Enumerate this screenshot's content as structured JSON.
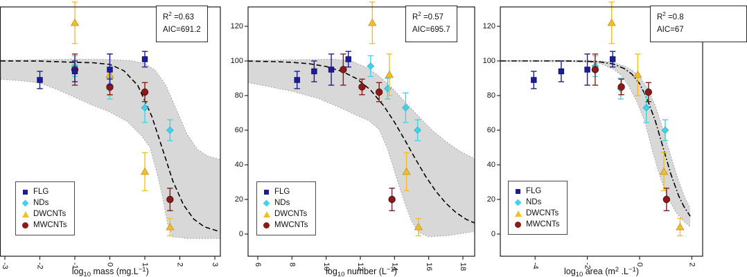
{
  "figure": {
    "background": "#ffffff",
    "colors": {
      "band_fill": "#d8d8d8",
      "band_edge": "#9e9e9e",
      "curve": "#000000",
      "axis": "#1a1a1a"
    },
    "legend": {
      "items": [
        {
          "label": "FLG",
          "marker": "square",
          "color": "#1c1c96",
          "edge": "#0d0d6b"
        },
        {
          "label": "NDs",
          "marker": "diamond",
          "color": "#41d3e8",
          "edge": "#17b0cc"
        },
        {
          "label": "DWCNTs",
          "marker": "triangle",
          "color": "#f2bf27",
          "edge": "#c2911a"
        },
        {
          "label": "MWCNTs",
          "marker": "circle",
          "color": "#8b1a1a",
          "edge": "#5c0e0e"
        }
      ]
    },
    "y_axis": {
      "ticks": [
        0,
        20,
        40,
        60,
        80,
        100,
        120
      ]
    }
  },
  "chart_data": [
    {
      "type": "scatter",
      "id": "mass",
      "stats": {
        "lines": [
          [
            {
              "t": "t",
              "v": "R"
            },
            {
              "t": "sup",
              "v": "2"
            },
            {
              "t": "t",
              "v": " =0.63"
            }
          ],
          [
            {
              "t": "t",
              "v": "AIC=691.2"
            }
          ]
        ]
      },
      "xlabel_parts": [
        {
          "t": "t",
          "v": "log"
        },
        {
          "t": "sub",
          "v": "10"
        },
        {
          "t": "t",
          "v": " mass (mg.L"
        },
        {
          "t": "sup",
          "v": "−1"
        },
        {
          "t": "t",
          "v": ")"
        }
      ],
      "x_ticks": [
        -3,
        -2,
        -1,
        0,
        1,
        2,
        3
      ],
      "xlim": [
        -3.12,
        3.16
      ],
      "ylim": [
        -12.8,
        131.2
      ],
      "series": [
        {
          "name": "FLG",
          "x": [
            -2,
            -1,
            0,
            1
          ],
          "y": [
            89,
            94,
            95,
            101
          ],
          "err": [
            5,
            6,
            9,
            4.5
          ]
        },
        {
          "name": "NDs",
          "x": [
            -1,
            0,
            1,
            1.72
          ],
          "y": [
            97,
            84,
            73,
            60
          ],
          "err": [
            6,
            6,
            8.5,
            6
          ]
        },
        {
          "name": "DWCNTs",
          "x": [
            -1,
            0,
            1,
            1.72
          ],
          "y": [
            122,
            92,
            36,
            4
          ],
          "err": [
            12,
            12,
            11,
            5
          ]
        },
        {
          "name": "MWCNTs",
          "x": [
            -1,
            0,
            1,
            1.72
          ],
          "y": [
            95,
            85,
            82,
            20
          ],
          "err": [
            9,
            4.5,
            5.5,
            6.5
          ]
        }
      ],
      "fit_curve": [
        [
          -3.12,
          100
        ],
        [
          -2,
          99.9
        ],
        [
          -1,
          99.2
        ],
        [
          -0.5,
          99
        ],
        [
          0,
          98
        ],
        [
          0.4,
          94.4
        ],
        [
          0.8,
          85.8
        ],
        [
          1.2,
          68
        ],
        [
          1.5,
          49.4
        ],
        [
          1.8,
          30.7
        ],
        [
          2.1,
          17
        ],
        [
          2.4,
          8.6
        ],
        [
          2.7,
          4.2
        ],
        [
          3.16,
          1.3
        ]
      ],
      "band_upper": [
        [
          -3.12,
          100.4
        ],
        [
          -2,
          100.7
        ],
        [
          -1,
          101
        ],
        [
          0,
          100.8
        ],
        [
          0.6,
          100.2
        ],
        [
          1.0,
          98.5
        ],
        [
          1.3,
          94.5
        ],
        [
          1.6,
          86
        ],
        [
          1.9,
          72
        ],
        [
          2.2,
          58
        ],
        [
          2.5,
          49
        ],
        [
          2.8,
          45
        ],
        [
          3.16,
          43
        ]
      ],
      "band_lower": [
        [
          -3.12,
          89.5
        ],
        [
          -2.5,
          88.5
        ],
        [
          -2,
          87.3
        ],
        [
          -1.5,
          83.5
        ],
        [
          -1,
          79
        ],
        [
          -0.5,
          74.5
        ],
        [
          0,
          70.5
        ],
        [
          0.5,
          65
        ],
        [
          0.9,
          57
        ],
        [
          1.15,
          50
        ],
        [
          1.35,
          35
        ],
        [
          1.5,
          22
        ],
        [
          1.65,
          6
        ],
        [
          1.8,
          -1.5
        ],
        [
          2.2,
          -2.5
        ],
        [
          3.16,
          -2.5
        ]
      ]
    },
    {
      "type": "scatter",
      "id": "number",
      "stats": {
        "lines": [
          [
            {
              "t": "t",
              "v": "R"
            },
            {
              "t": "sup",
              "v": "2"
            },
            {
              "t": "t",
              "v": " =0.57"
            }
          ],
          [
            {
              "t": "t",
              "v": "AIC=695.7"
            }
          ]
        ]
      },
      "xlabel_parts": [
        {
          "t": "t",
          "v": "log"
        },
        {
          "t": "sub",
          "v": "10"
        },
        {
          "t": "t",
          "v": " number (L"
        },
        {
          "t": "sup",
          "v": "−1"
        },
        {
          "t": "t",
          "v": ")"
        }
      ],
      "x_ticks": [
        6,
        8,
        10,
        12,
        14,
        16,
        18
      ],
      "xlim": [
        5.43,
        18.69
      ],
      "ylim": [
        -12.8,
        131.2
      ],
      "series": [
        {
          "name": "FLG",
          "x": [
            8.3,
            9.3,
            10.3,
            11.3
          ],
          "y": [
            89,
            94,
            95,
            101
          ],
          "err": [
            5,
            6,
            9,
            4.5
          ]
        },
        {
          "name": "NDs",
          "x": [
            12.6,
            13.6,
            14.65,
            15.35
          ],
          "y": [
            97,
            84,
            73,
            60
          ],
          "err": [
            6,
            6,
            8.5,
            6
          ]
        },
        {
          "name": "DWCNTs",
          "x": [
            12.7,
            13.7,
            14.7,
            15.4
          ],
          "y": [
            122,
            92,
            36,
            4
          ],
          "err": [
            12,
            12,
            11,
            5
          ]
        },
        {
          "name": "MWCNTs",
          "x": [
            11.0,
            12.1,
            13.1,
            13.85
          ],
          "y": [
            95,
            85,
            82,
            20
          ],
          "err": [
            9,
            4.5,
            5.5,
            6.5
          ]
        }
      ],
      "fit_curve": [
        [
          5.43,
          99.9
        ],
        [
          7,
          99.6
        ],
        [
          8,
          99.2
        ],
        [
          9,
          98.4
        ],
        [
          10,
          96.8
        ],
        [
          11,
          93.7
        ],
        [
          11.8,
          89.7
        ],
        [
          12.6,
          83.2
        ],
        [
          13.4,
          73.7
        ],
        [
          14,
          64.6
        ],
        [
          14.6,
          54.4
        ],
        [
          15.2,
          43.8
        ],
        [
          15.8,
          33.7
        ],
        [
          16.4,
          25
        ],
        [
          17,
          17.9
        ],
        [
          17.6,
          12.4
        ],
        [
          18.2,
          8.5
        ],
        [
          18.69,
          6.4
        ]
      ],
      "band_upper": [
        [
          5.43,
          100.3
        ],
        [
          7,
          100.5
        ],
        [
          9,
          100.8
        ],
        [
          10.5,
          101
        ],
        [
          11.5,
          99.8
        ],
        [
          12.3,
          96.5
        ],
        [
          13,
          92
        ],
        [
          13.8,
          85
        ],
        [
          14.6,
          76.5
        ],
        [
          15.4,
          68
        ],
        [
          16.2,
          60
        ],
        [
          17,
          53.5
        ],
        [
          17.8,
          48
        ],
        [
          18.69,
          43.5
        ]
      ],
      "band_lower": [
        [
          5.43,
          87.5
        ],
        [
          6.5,
          85.5
        ],
        [
          8,
          82.5
        ],
        [
          9.5,
          78.5
        ],
        [
          10.7,
          73.5
        ],
        [
          11.7,
          69
        ],
        [
          12.5,
          65.5
        ],
        [
          13.1,
          60.5
        ],
        [
          13.6,
          49
        ],
        [
          14.1,
          33
        ],
        [
          14.6,
          18
        ],
        [
          15,
          7.5
        ],
        [
          15.4,
          1
        ],
        [
          16,
          -1.5
        ],
        [
          17,
          -1
        ],
        [
          18,
          0.5
        ],
        [
          18.69,
          1.5
        ]
      ]
    },
    {
      "type": "scatter",
      "id": "area",
      "stats": {
        "lines": [
          [
            {
              "t": "t",
              "v": "R"
            },
            {
              "t": "sup",
              "v": "2"
            },
            {
              "t": "t",
              "v": " =0.8"
            }
          ],
          [
            {
              "t": "t",
              "v": "AIC=67"
            }
          ]
        ]
      },
      "xlabel_parts": [
        {
          "t": "t",
          "v": "log"
        },
        {
          "t": "sub",
          "v": "10"
        },
        {
          "t": "t",
          "v": " area (m"
        },
        {
          "t": "sup",
          "v": "2"
        },
        {
          "t": "t",
          "v": " .L"
        },
        {
          "t": "sup",
          "v": "−1"
        },
        {
          "t": "t",
          "v": ")"
        }
      ],
      "x_ticks": [
        -4,
        -2,
        0,
        2
      ],
      "xlim": [
        -5.33,
        1.94
      ],
      "ylim": [
        -12.8,
        131.2
      ],
      "series": [
        {
          "name": "FLG",
          "x": [
            -4.05,
            -3.0,
            -2.0,
            -1.03
          ],
          "y": [
            89,
            94,
            95,
            101
          ],
          "err": [
            5,
            6,
            9,
            4.5
          ]
        },
        {
          "name": "NDs",
          "x": [
            -1.7,
            -0.72,
            0.26,
            0.98
          ],
          "y": [
            97,
            84,
            73,
            60
          ],
          "err": [
            6,
            6,
            8.5,
            6
          ]
        },
        {
          "name": "DWCNTs",
          "x": [
            -1.07,
            -0.07,
            0.93,
            1.55
          ],
          "y": [
            122,
            92,
            36,
            4
          ],
          "err": [
            12,
            12,
            11,
            5
          ]
        },
        {
          "name": "MWCNTs",
          "x": [
            -1.7,
            -0.7,
            0.34,
            1.03
          ],
          "y": [
            95,
            85,
            82,
            20
          ],
          "err": [
            9,
            4.5,
            5.5,
            6.5
          ]
        }
      ],
      "fit_curve": [
        [
          -5.33,
          100
        ],
        [
          -3,
          100
        ],
        [
          -2,
          99.8
        ],
        [
          -1.5,
          99.4
        ],
        [
          -1,
          98.2
        ],
        [
          -0.6,
          95.7
        ],
        [
          -0.3,
          92.5
        ],
        [
          0,
          86.9
        ],
        [
          0.3,
          77.7
        ],
        [
          0.6,
          65.5
        ],
        [
          0.9,
          50
        ],
        [
          1.2,
          34.5
        ],
        [
          1.5,
          22
        ],
        [
          1.7,
          15.8
        ],
        [
          1.94,
          10.3
        ]
      ],
      "band_upper": [
        [
          -5.33,
          100.2
        ],
        [
          -3,
          100.3
        ],
        [
          -2,
          100.2
        ],
        [
          -1.4,
          99.9
        ],
        [
          -1,
          98.9
        ],
        [
          -0.6,
          97.2
        ],
        [
          -0.3,
          94.8
        ],
        [
          0,
          90.9
        ],
        [
          0.3,
          84.3
        ],
        [
          0.6,
          74.2
        ],
        [
          0.9,
          60.4
        ],
        [
          1.2,
          44.8
        ],
        [
          1.5,
          30.4
        ],
        [
          1.7,
          22.3
        ],
        [
          1.94,
          14.7
        ]
      ],
      "band_lower": [
        [
          -5.33,
          99.8
        ],
        [
          -3,
          99.7
        ],
        [
          -2,
          99.4
        ],
        [
          -1.5,
          98.4
        ],
        [
          -1,
          95.3
        ],
        [
          -0.7,
          91.7
        ],
        [
          -0.4,
          85.3
        ],
        [
          -0.1,
          76.4
        ],
        [
          0.2,
          65.1
        ],
        [
          0.5,
          47.4
        ],
        [
          0.8,
          32.4
        ],
        [
          1.1,
          20.6
        ],
        [
          1.4,
          12.4
        ],
        [
          1.7,
          7.2
        ],
        [
          1.94,
          4.3
        ]
      ]
    }
  ]
}
